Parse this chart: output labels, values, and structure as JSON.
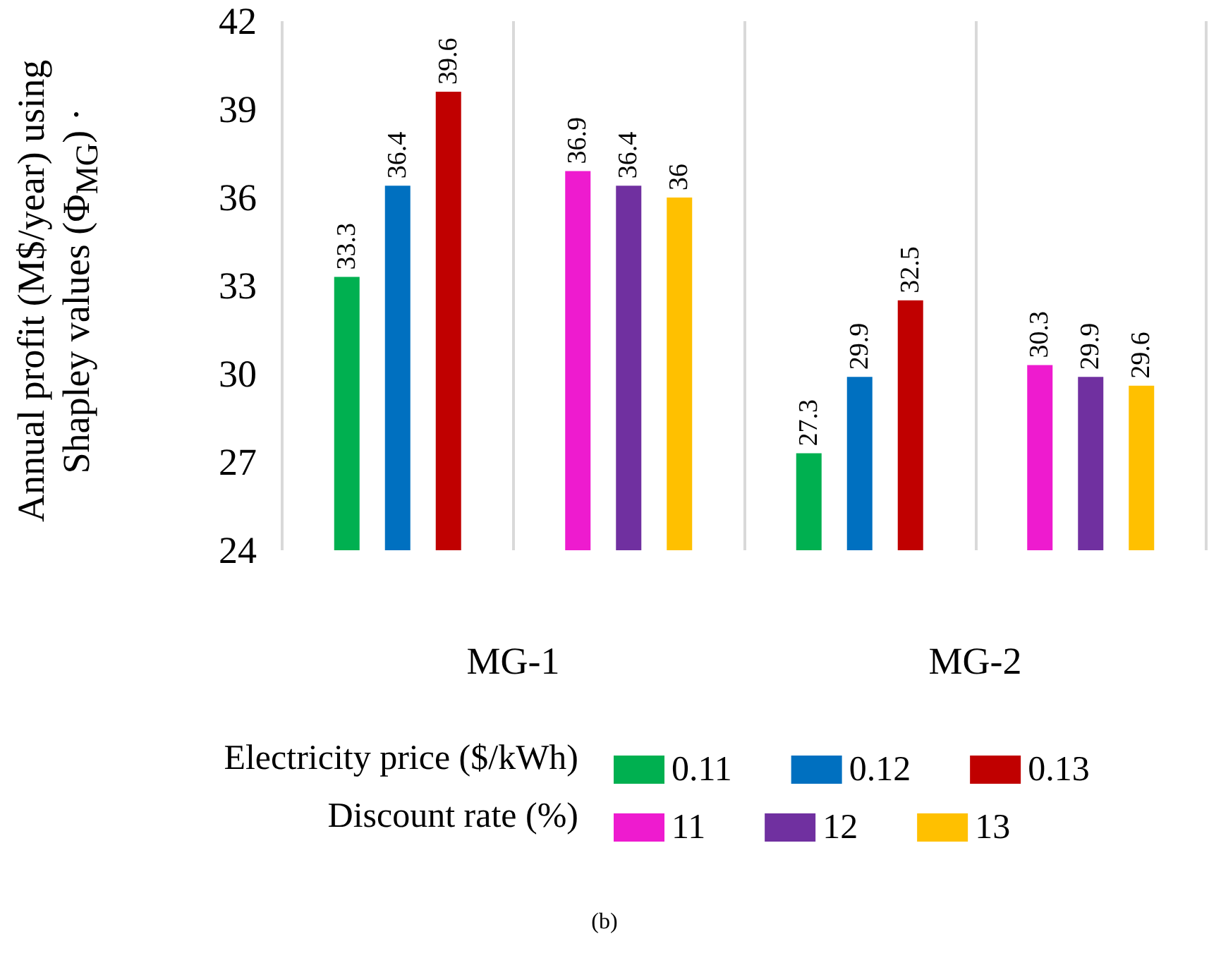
{
  "chart_data": {
    "type": "bar",
    "ylabel": "Annual profit (M$/year) using Shapley values (Φ$_{MG}$) ·",
    "legend_title": [
      "Electricity price ($/kWh)",
      "Discount rate (%)"
    ],
    "categories": [
      "MG-1",
      "MG-2"
    ],
    "series": [
      {
        "name": "0.11",
        "color": "#00b050",
        "values": [
          33.3,
          27.3
        ]
      },
      {
        "name": "0.12",
        "color": "#0070c0",
        "values": [
          36.4,
          29.9
        ]
      },
      {
        "name": "0.13",
        "color": "#c00000",
        "values": [
          39.6,
          32.5
        ]
      },
      {
        "name": "11",
        "color": "#ee1bcf",
        "values": [
          36.9,
          30.3
        ]
      },
      {
        "name": "12",
        "color": "#7030a0",
        "values": [
          36.4,
          29.9
        ]
      },
      {
        "name": "13",
        "color": "#ffc000",
        "values": [
          36,
          29.6
        ]
      }
    ],
    "ylim": [
      24,
      42
    ],
    "yticks": [
      24,
      27,
      30,
      33,
      36,
      39,
      42
    ],
    "grid": "x",
    "legend": "bottom",
    "data_labels": true,
    "annotations": [
      "(b)"
    ]
  }
}
